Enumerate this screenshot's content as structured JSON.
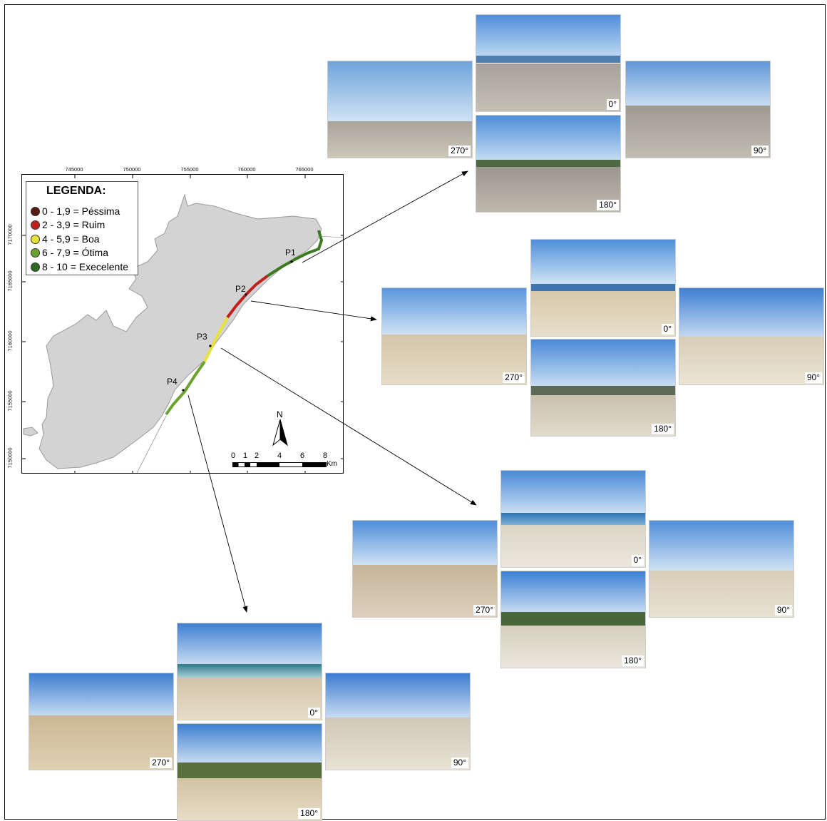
{
  "map": {
    "x_ticks": [
      "745000",
      "750000",
      "755000",
      "760000",
      "765000"
    ],
    "y_ticks": [
      "7170000",
      "7165000",
      "7160000",
      "7155000",
      "7150000"
    ],
    "north_label": "N",
    "scale_labels": [
      "0",
      "1",
      "2",
      "4",
      "6",
      "8"
    ],
    "scale_unit": "Km",
    "points": [
      "P1",
      "P2",
      "P3",
      "P4"
    ]
  },
  "legend": {
    "title": "LEGENDA:",
    "items": [
      {
        "label": "0 - 1,9 = Péssima",
        "color": "#5a1a10"
      },
      {
        "label": "2 - 3,9 = Ruim",
        "color": "#c0211f"
      },
      {
        "label": "4 - 5,9 = Boa",
        "color": "#e8e33a"
      },
      {
        "label": "6 - 7,9 = Ótima",
        "color": "#6aa22e"
      },
      {
        "label": "8 - 10  = Execelente",
        "color": "#2e6b20"
      }
    ]
  },
  "photo_groups": [
    {
      "point": "P1",
      "labels": [
        "0°",
        "90°",
        "180°",
        "270°"
      ]
    },
    {
      "point": "P2",
      "labels": [
        "0°",
        "90°",
        "180°",
        "270°"
      ]
    },
    {
      "point": "P3",
      "labels": [
        "0°",
        "90°",
        "180°",
        "270°"
      ]
    },
    {
      "point": "P4",
      "labels": [
        "0°",
        "90°",
        "180°",
        "270°"
      ]
    }
  ]
}
